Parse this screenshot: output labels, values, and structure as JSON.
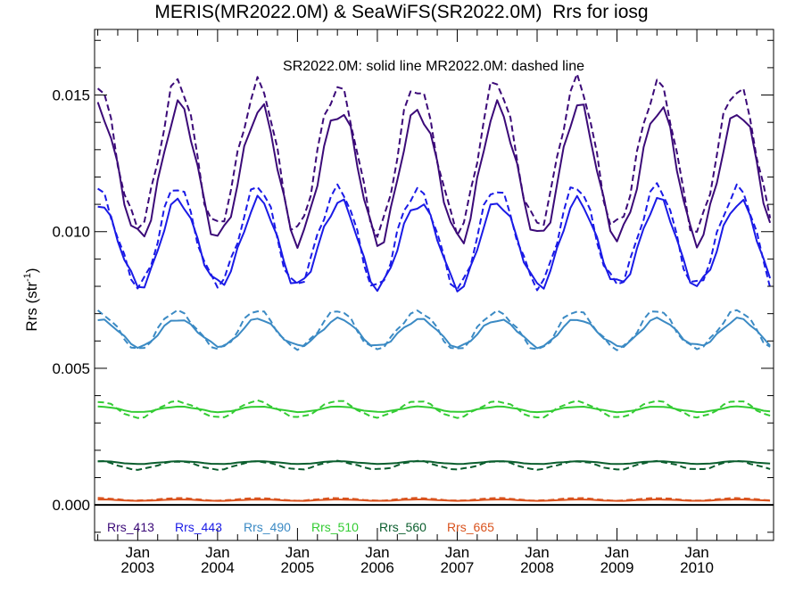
{
  "chart_data": {
    "type": "line",
    "title": "MERIS(MR2022.0M) & SeaWiFS(SR2022.0M)  Rrs for iosg",
    "subtitle": "SR2022.0M: solid line   MR2022.0M: dashed line",
    "ylabel_main": "Rrs (str",
    "ylabel_sup": "-1",
    "ylabel_tail": ")",
    "xlabel": "",
    "x_tick_month": "Jan",
    "x_ticks": [
      "2003",
      "2004",
      "2005",
      "2006",
      "2007",
      "2008",
      "2009",
      "2010"
    ],
    "xlim": [
      2002.46,
      2010.96
    ],
    "y_ticks": [
      "0.000",
      "0.005",
      "0.010",
      "0.015"
    ],
    "ylim": [
      -0.0013,
      0.0174
    ],
    "grid": false,
    "legend_position": "bottom-left inside plot",
    "line_styles": {
      "SR2022.0M": "solid",
      "MR2022.0M": "dashed"
    },
    "series": [
      {
        "name": "Rrs_413",
        "color": "#3b0a78",
        "solid": {
          "trough": 0.0097,
          "peak": 0.0145
        },
        "dashed": {
          "trough": 0.0101,
          "peak": 0.0154
        }
      },
      {
        "name": "Rrs_443",
        "color": "#1a1ae6",
        "solid": {
          "trough": 0.008,
          "peak": 0.0111
        },
        "dashed": {
          "trough": 0.008,
          "peak": 0.0116
        }
      },
      {
        "name": "Rrs_490",
        "color": "#3b8ac4",
        "solid": {
          "trough": 0.0058,
          "peak": 0.0068
        },
        "dashed": {
          "trough": 0.0057,
          "peak": 0.0071
        }
      },
      {
        "name": "Rrs_510",
        "color": "#33cc33",
        "solid": {
          "trough": 0.0034,
          "peak": 0.0036
        },
        "dashed": {
          "trough": 0.0032,
          "peak": 0.0038
        }
      },
      {
        "name": "Rrs_560",
        "color": "#0b5e2e",
        "solid": {
          "trough": 0.0015,
          "peak": 0.0016
        },
        "dashed": {
          "trough": 0.0013,
          "peak": 0.0016
        }
      },
      {
        "name": "Rrs_665",
        "color": "#d9531e",
        "solid": {
          "trough": 0.00015,
          "peak": 0.0002
        },
        "dashed": {
          "trough": 0.00016,
          "peak": 0.00025
        }
      }
    ]
  }
}
